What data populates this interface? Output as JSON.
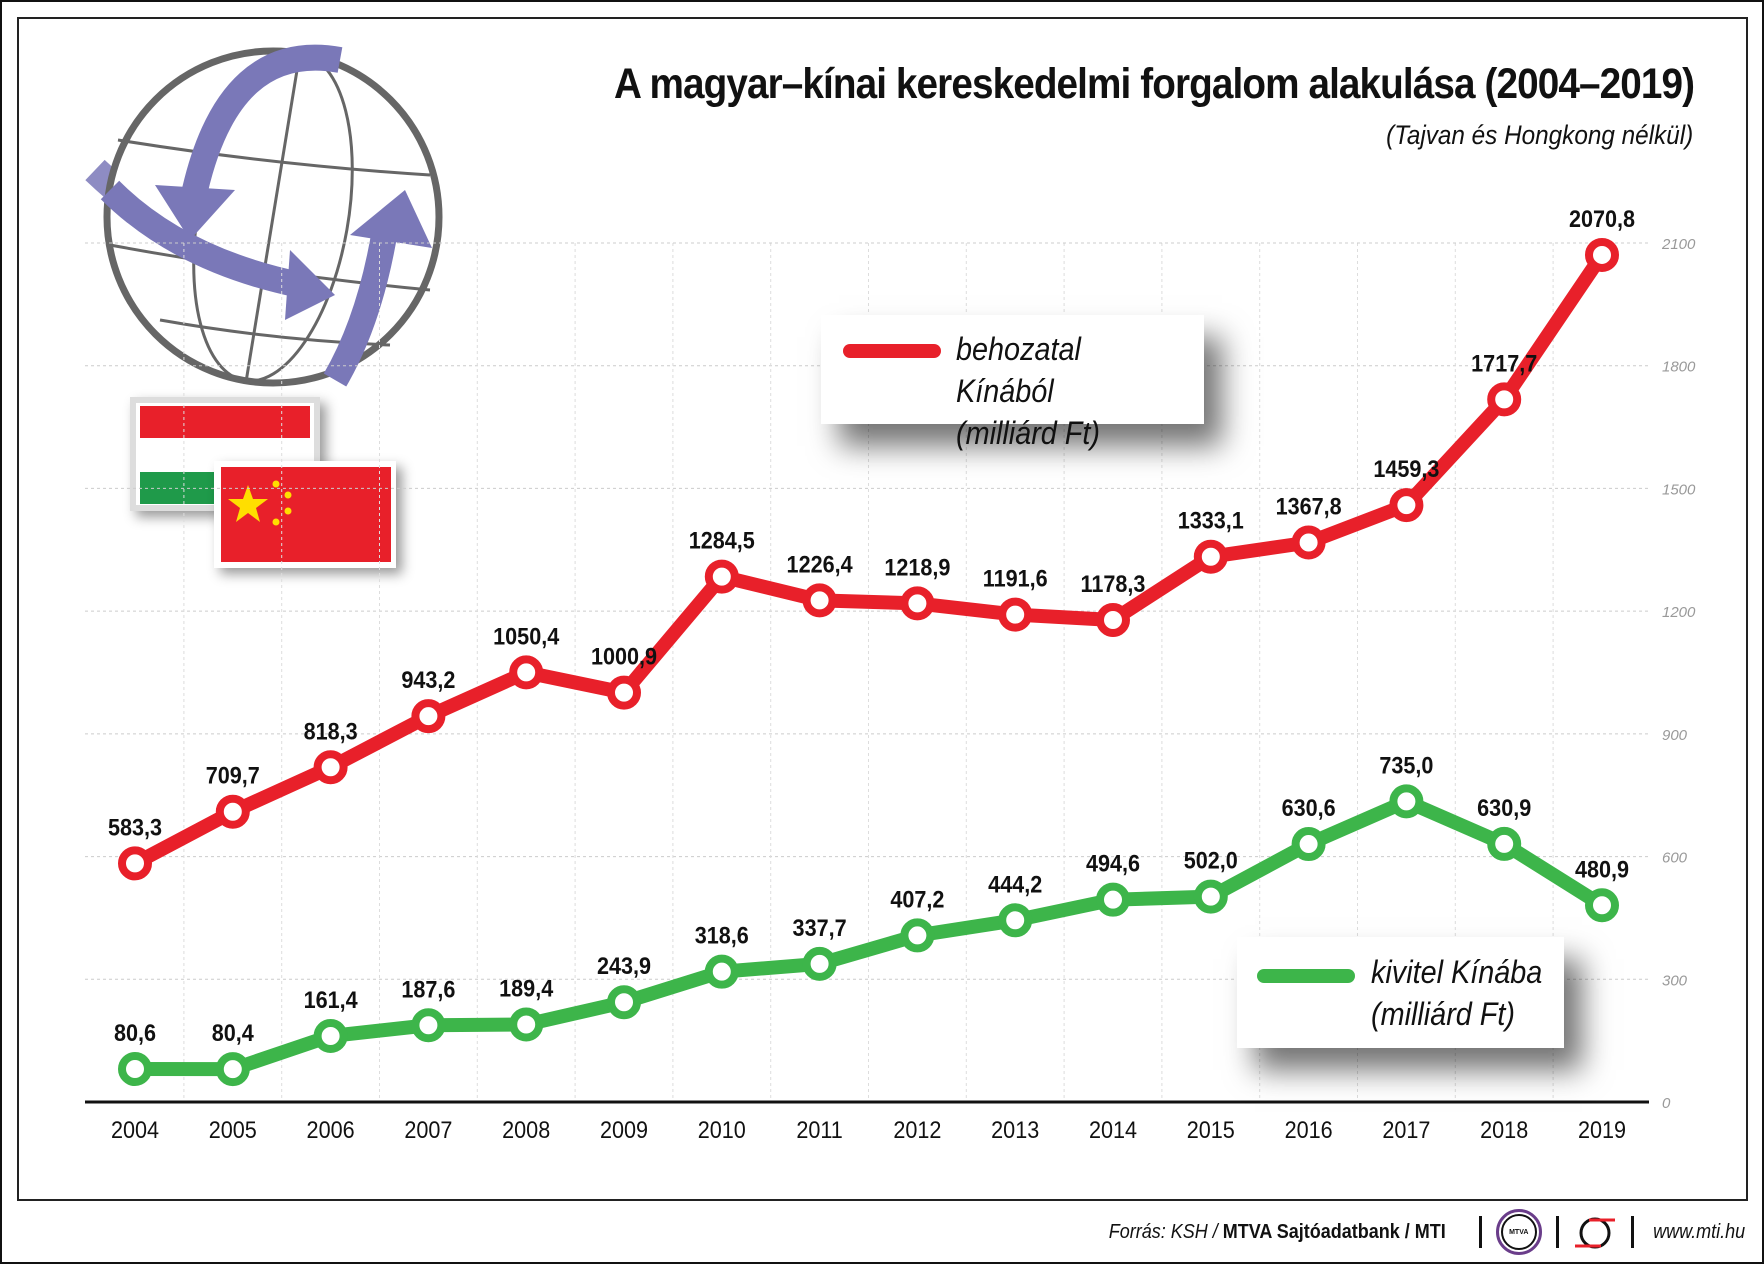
{
  "title": "A magyar–kínai kereskedelmi forgalom alakulása (2004–2019)",
  "subtitle": "(Tajvan és Hongkong nélkül)",
  "footer": {
    "source_prefix": "Forrás: KSH / ",
    "source_bold": "MTVA Sajtóadatbank / MTI",
    "logo1": "MTVA",
    "url": "www.mti.hu"
  },
  "colors": {
    "import": "#e8202a",
    "export": "#3db54a",
    "globe_arrow": "#7a78b8"
  },
  "chart_data": {
    "type": "line",
    "title": "A magyar–kínai kereskedelmi forgalom alakulása (2004–2019)",
    "categories": [
      "2004",
      "2005",
      "2006",
      "2007",
      "2008",
      "2009",
      "2010",
      "2011",
      "2012",
      "2013",
      "2014",
      "2015",
      "2016",
      "2017",
      "2018",
      "2019"
    ],
    "series": [
      {
        "name": "behozatal Kínából (milliárd Ft)",
        "line1": "behozatal Kínából",
        "line2": "(milliárd Ft)",
        "values": [
          583.3,
          709.7,
          818.3,
          943.2,
          1050.4,
          1000.9,
          1284.5,
          1226.4,
          1218.9,
          1191.6,
          1178.3,
          1333.1,
          1367.8,
          1459.3,
          1717.7,
          2070.8
        ],
        "labels": [
          "583,3",
          "709,7",
          "818,3",
          "943,2",
          "1050,4",
          "1000,9",
          "1284,5",
          "1226,4",
          "1218,9",
          "1191,6",
          "1178,3",
          "1333,1",
          "1367,8",
          "1459,3",
          "1717,7",
          "2070,8"
        ]
      },
      {
        "name": "kivitel Kínába (milliárd Ft)",
        "line1": "kivitel Kínába",
        "line2": "(milliárd Ft)",
        "values": [
          80.6,
          80.4,
          161.4,
          187.6,
          189.4,
          243.9,
          318.6,
          337.7,
          407.2,
          444.2,
          494.6,
          502.0,
          630.6,
          735.0,
          630.9,
          480.9
        ],
        "labels": [
          "80,6",
          "80,4",
          "161,4",
          "187,6",
          "189,4",
          "243,9",
          "318,6",
          "337,7",
          "407,2",
          "444,2",
          "494,6",
          "502,0",
          "630,6",
          "735,0",
          "630,9",
          "480,9"
        ]
      }
    ],
    "yticks": [
      0,
      300,
      600,
      900,
      1200,
      1500,
      1800,
      2100
    ],
    "ylim": [
      0,
      2100
    ],
    "grid": true,
    "legend_placement": "inside"
  }
}
